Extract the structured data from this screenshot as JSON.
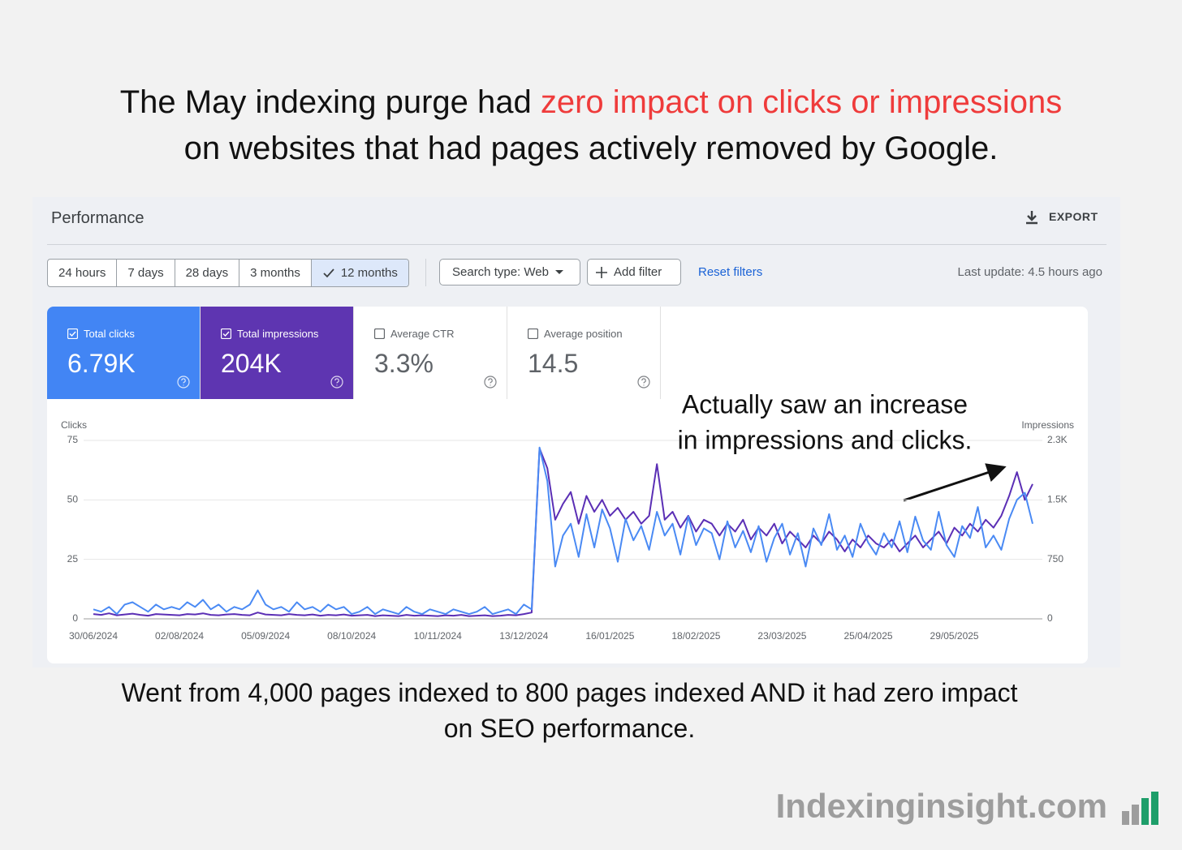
{
  "headline": {
    "line1_start": "The May indexing purge had ",
    "line1_highlight": "zero impact on clicks or impressions",
    "line2": "on websites that had pages actively removed by Google."
  },
  "panel": {
    "title": "Performance",
    "export": "EXPORT",
    "date_ranges": [
      "24 hours",
      "7 days",
      "28 days",
      "3 months",
      "12 months"
    ],
    "search_type": "Search type: Web",
    "add_filter": "Add filter",
    "reset_filters": "Reset filters",
    "last_update": "Last update: 4.5 hours ago"
  },
  "metrics": [
    {
      "label": "Total clicks",
      "value": "6.79K"
    },
    {
      "label": "Total impressions",
      "value": "204K"
    },
    {
      "label": "Average CTR",
      "value": "3.3%"
    },
    {
      "label": "Average position",
      "value": "14.5"
    }
  ],
  "chart_data": {
    "type": "line",
    "y_label": "Clicks",
    "y2_label": "Impressions",
    "categories": [
      "30/06/2024",
      null,
      null,
      null,
      null,
      null,
      null,
      null,
      null,
      null,
      null,
      "02/08/2024",
      null,
      null,
      null,
      null,
      null,
      null,
      null,
      null,
      null,
      null,
      "05/09/2024",
      null,
      null,
      null,
      null,
      null,
      null,
      null,
      null,
      null,
      null,
      "08/10/2024",
      null,
      null,
      null,
      null,
      null,
      null,
      null,
      null,
      null,
      null,
      "10/11/2024",
      null,
      null,
      null,
      null,
      null,
      null,
      null,
      null,
      null,
      null,
      "13/12/2024",
      null,
      null,
      null,
      null,
      null,
      null,
      null,
      null,
      null,
      null,
      "16/01/2025",
      null,
      null,
      null,
      null,
      null,
      null,
      null,
      null,
      null,
      null,
      "18/02/2025",
      null,
      null,
      null,
      null,
      null,
      null,
      null,
      null,
      null,
      null,
      "23/03/2025",
      null,
      null,
      null,
      null,
      null,
      null,
      null,
      null,
      null,
      null,
      "25/04/2025",
      null,
      null,
      null,
      null,
      null,
      null,
      null,
      null,
      null,
      null,
      "29/05/2025",
      null,
      null,
      null,
      null,
      null,
      null,
      null,
      null,
      null,
      null
    ],
    "series": [
      {
        "name": "Total impressions",
        "color": "#5b2fb5",
        "axis": "y2",
        "values": [
          60,
          50,
          70,
          45,
          55,
          65,
          50,
          40,
          60,
          55,
          50,
          45,
          60,
          55,
          70,
          50,
          45,
          55,
          60,
          50,
          45,
          80,
          55,
          50,
          45,
          60,
          50,
          45,
          55,
          40,
          50,
          45,
          55,
          40,
          45,
          50,
          35,
          45,
          40,
          35,
          50,
          40,
          45,
          40,
          35,
          45,
          40,
          50,
          35,
          40,
          45,
          35,
          40,
          50,
          45,
          60,
          80,
          2150,
          1900,
          1250,
          1450,
          1600,
          1200,
          1550,
          1350,
          1500,
          1300,
          1400,
          1250,
          1350,
          1200,
          1300,
          1950,
          1250,
          1350,
          1150,
          1300,
          1100,
          1250,
          1200,
          1050,
          1200,
          1100,
          1250,
          1000,
          1150,
          1050,
          1200,
          950,
          1100,
          1000,
          900,
          1050,
          950,
          1100,
          1000,
          850,
          1000,
          900,
          1050,
          950,
          900,
          1000,
          850,
          950,
          1050,
          900,
          1000,
          1100,
          950,
          1150,
          1050,
          1200,
          1100,
          1250,
          1150,
          1300,
          1550,
          1850,
          1500,
          1700
        ]
      },
      {
        "name": "Total clicks",
        "color": "#4a8af4",
        "values": [
          4,
          3,
          5,
          2,
          6,
          7,
          5,
          3,
          6,
          4,
          5,
          4,
          7,
          5,
          8,
          4,
          6,
          3,
          5,
          4,
          6,
          12,
          6,
          4,
          5,
          3,
          7,
          4,
          5,
          3,
          6,
          4,
          5,
          2,
          3,
          5,
          2,
          4,
          3,
          2,
          5,
          3,
          2,
          4,
          3,
          2,
          4,
          3,
          2,
          3,
          5,
          2,
          3,
          4,
          2,
          6,
          4,
          72,
          58,
          22,
          35,
          40,
          26,
          44,
          30,
          46,
          38,
          24,
          42,
          33,
          39,
          29,
          45,
          35,
          40,
          27,
          43,
          31,
          38,
          36,
          25,
          41,
          30,
          37,
          28,
          39,
          24,
          34,
          40,
          27,
          36,
          22,
          38,
          31,
          44,
          29,
          35,
          26,
          40,
          32,
          27,
          36,
          30,
          41,
          28,
          43,
          33,
          29,
          45,
          31,
          26,
          39,
          34,
          47,
          30,
          35,
          29,
          42,
          50,
          53,
          40
        ]
      }
    ],
    "ylim": [
      0,
      75
    ],
    "yticks": [
      0,
      25,
      50,
      75
    ],
    "y2lim": [
      0,
      2250
    ],
    "y2ticks": [
      0,
      750,
      {
        "value": 1500,
        "label": "1.5K"
      },
      {
        "value": 2250,
        "label": "2.3K"
      }
    ],
    "grid": true,
    "annotation": [
      "Actually saw an increase",
      "in impressions and clicks."
    ]
  },
  "caption": [
    "Went from 4,000 pages indexed to 800 pages indexed AND it had zero impact",
    "on SEO performance."
  ],
  "brand": "Indexinginsight.com"
}
